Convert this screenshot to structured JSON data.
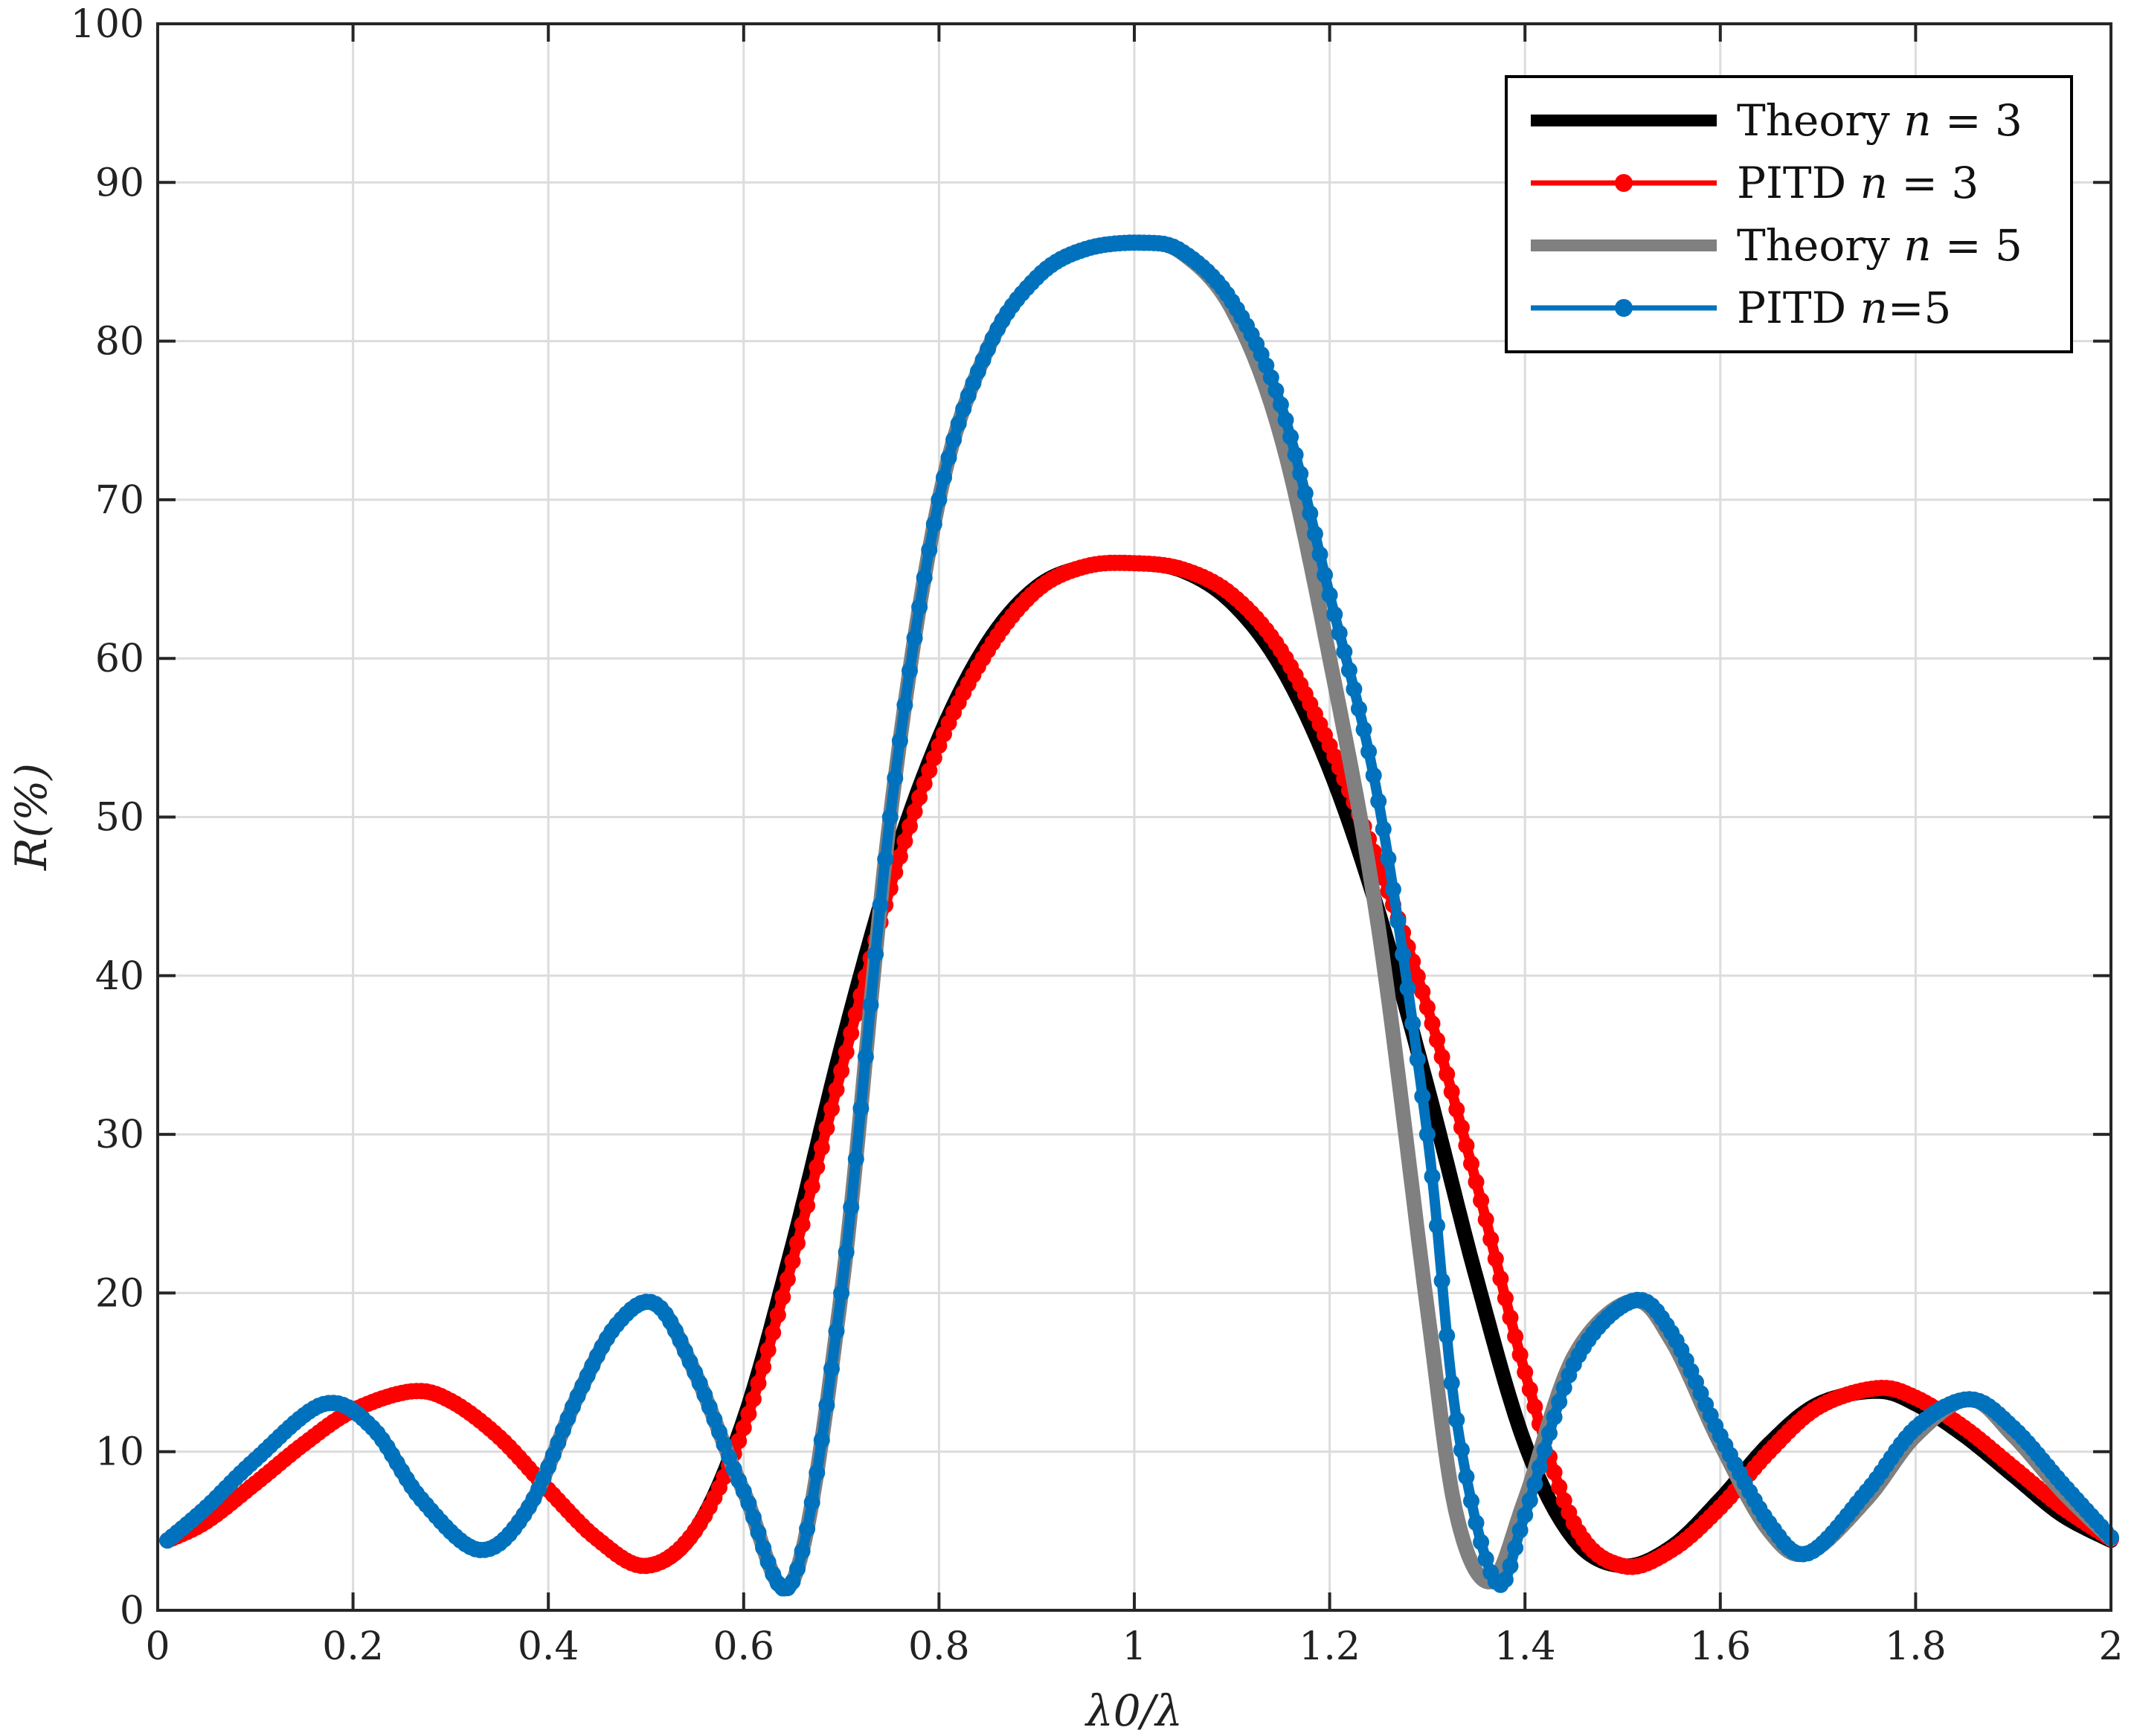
{
  "chart_data": {
    "type": "line",
    "title": "",
    "xlabel": "λ0/λ",
    "ylabel": "R(%)",
    "xlim": [
      0,
      2
    ],
    "ylim": [
      0,
      100
    ],
    "grid": true,
    "legend_position": "top-right",
    "xticks": [
      0,
      0.2,
      0.4,
      0.6,
      0.8,
      1,
      1.2,
      1.4,
      1.6,
      1.8,
      2
    ],
    "xtick_labels": [
      "0",
      "0.2",
      "0.4",
      "0.6",
      "0.8",
      "1",
      "1.2",
      "1.4",
      "1.6",
      "1.8",
      "2"
    ],
    "yticks": [
      0,
      10,
      20,
      30,
      40,
      50,
      60,
      70,
      80,
      90,
      100
    ],
    "ytick_labels": [
      "0",
      "10",
      "20",
      "30",
      "40",
      "50",
      "60",
      "70",
      "80",
      "90",
      "100"
    ],
    "series": [
      {
        "name": "Theory n = 3",
        "legend_prefix": "Theory ",
        "legend_var": "n",
        "legend_rest": " = 3",
        "color": "#000000",
        "style": "line",
        "x": [
          0.01,
          0.05,
          0.1,
          0.15,
          0.2,
          0.26,
          0.3,
          0.35,
          0.4,
          0.45,
          0.5,
          0.55,
          0.6,
          0.65,
          0.7,
          0.75,
          0.8,
          0.85,
          0.9,
          0.95,
          1.0,
          1.05,
          1.1,
          1.15,
          1.2,
          1.25,
          1.3,
          1.35,
          1.4,
          1.45,
          1.5,
          1.55,
          1.6,
          1.65,
          1.7,
          1.76,
          1.8,
          1.85,
          1.9,
          1.95,
          2.0
        ],
        "y": [
          4.4,
          5.6,
          8.0,
          10.5,
          12.6,
          13.8,
          13.2,
          10.9,
          7.6,
          4.5,
          2.8,
          5.0,
          12.0,
          23.0,
          35.5,
          46.5,
          55.0,
          61.0,
          64.5,
          65.8,
          66.0,
          65.5,
          63.5,
          59.5,
          53.0,
          44.0,
          33.0,
          21.0,
          10.5,
          4.5,
          2.8,
          4.0,
          7.0,
          10.5,
          13.0,
          13.8,
          13.0,
          11.0,
          8.5,
          6.0,
          4.4
        ]
      },
      {
        "name": "PITD n = 3",
        "legend_prefix": "PITD ",
        "legend_var": "n",
        "legend_rest": " = 3",
        "color": "#ff0000",
        "style": "line-markers",
        "x": [
          0.01,
          0.05,
          0.1,
          0.15,
          0.2,
          0.26,
          0.3,
          0.35,
          0.4,
          0.45,
          0.5,
          0.55,
          0.6,
          0.65,
          0.7,
          0.75,
          0.8,
          0.85,
          0.9,
          0.95,
          1.0,
          1.05,
          1.1,
          1.15,
          1.2,
          1.25,
          1.3,
          1.35,
          1.4,
          1.45,
          1.5,
          1.55,
          1.6,
          1.65,
          1.7,
          1.76,
          1.8,
          1.85,
          1.9,
          1.95,
          2.0
        ],
        "y": [
          4.4,
          5.6,
          8.0,
          10.5,
          12.6,
          13.8,
          13.2,
          10.9,
          7.6,
          4.5,
          2.8,
          5.0,
          11.5,
          22.0,
          34.0,
          45.5,
          54.5,
          60.5,
          64.3,
          65.8,
          66.0,
          65.6,
          64.0,
          60.5,
          54.5,
          47.0,
          38.0,
          27.0,
          15.0,
          5.5,
          2.8,
          3.8,
          6.5,
          10.0,
          12.8,
          14.0,
          13.4,
          11.5,
          9.0,
          6.5,
          4.5
        ]
      },
      {
        "name": "Theory n = 5",
        "legend_prefix": "Theory ",
        "legend_var": "n",
        "legend_rest": " = 5",
        "color": "#808080",
        "style": "line",
        "x": [
          0.01,
          0.05,
          0.1,
          0.17,
          0.22,
          0.27,
          0.33,
          0.38,
          0.43,
          0.47,
          0.51,
          0.55,
          0.6,
          0.65,
          0.7,
          0.75,
          0.8,
          0.85,
          0.9,
          0.95,
          1.01,
          1.05,
          1.1,
          1.15,
          1.2,
          1.25,
          1.3,
          1.33,
          1.365,
          1.4,
          1.45,
          1.51,
          1.55,
          1.6,
          1.65,
          1.69,
          1.75,
          1.8,
          1.855,
          1.9,
          1.95,
          2.0
        ],
        "y": [
          4.4,
          6.5,
          9.5,
          13.0,
          11.5,
          7.0,
          3.8,
          6.5,
          13.5,
          18.0,
          19.3,
          15.0,
          7.5,
          1.8,
          20.0,
          50.0,
          70.0,
          79.5,
          84.0,
          85.8,
          86.2,
          85.5,
          82.0,
          74.0,
          60.0,
          43.0,
          19.0,
          6.0,
          1.8,
          7.0,
          16.0,
          19.5,
          17.0,
          10.5,
          5.0,
          3.6,
          7.0,
          11.0,
          13.3,
          11.0,
          7.5,
          4.5
        ]
      },
      {
        "name": "PITD n=5",
        "legend_prefix": "PITD ",
        "legend_var": "n",
        "legend_rest": "=5",
        "color": "#0072bd",
        "style": "line-markers",
        "x": [
          0.01,
          0.05,
          0.1,
          0.17,
          0.22,
          0.27,
          0.33,
          0.38,
          0.43,
          0.47,
          0.51,
          0.55,
          0.6,
          0.65,
          0.7,
          0.75,
          0.8,
          0.85,
          0.9,
          0.95,
          1.01,
          1.05,
          1.1,
          1.15,
          1.2,
          1.25,
          1.3,
          1.33,
          1.37,
          1.4,
          1.45,
          1.51,
          1.55,
          1.6,
          1.65,
          1.69,
          1.75,
          1.8,
          1.855,
          1.9,
          1.95,
          2.0
        ],
        "y": [
          4.4,
          6.5,
          9.5,
          13.0,
          11.5,
          7.0,
          3.8,
          6.5,
          13.5,
          18.0,
          19.3,
          15.0,
          7.5,
          1.8,
          20.0,
          50.0,
          70.0,
          79.5,
          84.0,
          85.8,
          86.2,
          85.6,
          82.5,
          76.0,
          64.0,
          51.0,
          30.0,
          12.0,
          1.8,
          6.0,
          15.5,
          19.5,
          17.5,
          11.0,
          5.5,
          3.6,
          7.5,
          11.5,
          13.3,
          11.5,
          8.0,
          4.6
        ]
      }
    ]
  }
}
